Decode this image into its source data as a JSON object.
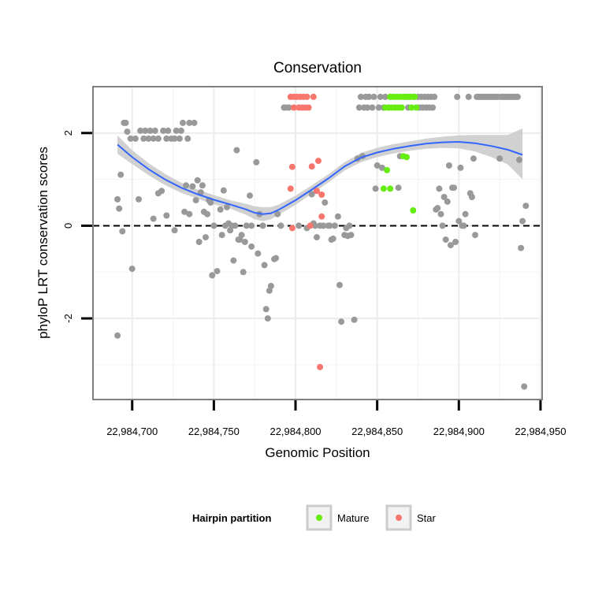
{
  "chart_data": {
    "type": "scatter",
    "title": "Conservation",
    "xlabel": "Genomic Position",
    "ylabel": "phyloP LRT conservation scores",
    "xlim": [
      22984676,
      22984951
    ],
    "ylim": [
      -3.75,
      3.0
    ],
    "x_ticks": [
      22984700,
      22984750,
      22984800,
      22984850,
      22984900,
      22984950
    ],
    "x_tick_labels": [
      "22,984,700",
      "22,984,750",
      "22,984,800",
      "22,984,850",
      "22,984,900",
      "22,984,950"
    ],
    "y_ticks": [
      -2,
      0,
      2
    ],
    "y_tick_labels": [
      "-2",
      "0",
      "2"
    ],
    "reference_line": {
      "y": 0,
      "style": "dashed"
    },
    "grid": true,
    "colors": {
      "none": "#999999",
      "Mature": "#66ee11",
      "Star": "#f8766d",
      "smooth": "#3366ff",
      "ribbon": "#cccccc",
      "panel": "#ebebeb"
    },
    "legend": {
      "title": "Hairpin partition",
      "position": "bottom",
      "entries": [
        {
          "label": "Mature",
          "color": "#66ee11"
        },
        {
          "label": "Star",
          "color": "#f8766d"
        }
      ]
    },
    "smooth": {
      "x": [
        22984691,
        22984700,
        22984710,
        22984720,
        22984730,
        22984740,
        22984750,
        22984760,
        22984770,
        22984775,
        22984780,
        22984785,
        22984790,
        22984800,
        22984810,
        22984820,
        22984830,
        22984840,
        22984850,
        22984860,
        22984870,
        22984880,
        22984890,
        22984900,
        22984910,
        22984920,
        22984930,
        22984939
      ],
      "y": [
        1.75,
        1.48,
        1.22,
        1.0,
        0.82,
        0.68,
        0.56,
        0.46,
        0.35,
        0.28,
        0.25,
        0.27,
        0.35,
        0.55,
        0.78,
        1.02,
        1.28,
        1.47,
        1.58,
        1.66,
        1.72,
        1.77,
        1.8,
        1.81,
        1.78,
        1.72,
        1.64,
        1.53
      ],
      "ymin": [
        1.55,
        1.33,
        1.09,
        0.88,
        0.71,
        0.58,
        0.46,
        0.37,
        0.23,
        0.14,
        0.1,
        0.14,
        0.24,
        0.45,
        0.69,
        0.93,
        1.19,
        1.37,
        1.48,
        1.56,
        1.62,
        1.66,
        1.68,
        1.67,
        1.6,
        1.48,
        1.32,
        1.0
      ],
      "ymax": [
        1.95,
        1.63,
        1.35,
        1.12,
        0.93,
        0.78,
        0.66,
        0.55,
        0.47,
        0.42,
        0.4,
        0.4,
        0.46,
        0.65,
        0.87,
        1.11,
        1.37,
        1.57,
        1.68,
        1.76,
        1.82,
        1.88,
        1.92,
        1.95,
        1.96,
        1.96,
        1.96,
        2.1
      ]
    },
    "series": [
      {
        "name": "none",
        "points": [
          [
            22984691,
            -2.37
          ],
          [
            22984691,
            0.57
          ],
          [
            22984692,
            0.37
          ],
          [
            22984693,
            1.1
          ],
          [
            22984694,
            -0.12
          ],
          [
            22984695,
            2.22
          ],
          [
            22984696,
            2.22
          ],
          [
            22984697,
            2.03
          ],
          [
            22984699,
            1.88
          ],
          [
            22984700,
            -0.93
          ],
          [
            22984702,
            1.88
          ],
          [
            22984704,
            0.57
          ],
          [
            22984705,
            2.05
          ],
          [
            22984707,
            1.88
          ],
          [
            22984708,
            2.05
          ],
          [
            22984710,
            1.88
          ],
          [
            22984711,
            2.05
          ],
          [
            22984713,
            0.15
          ],
          [
            22984713,
            1.88
          ],
          [
            22984714,
            2.05
          ],
          [
            22984716,
            0.7
          ],
          [
            22984716,
            1.88
          ],
          [
            22984718,
            0.75
          ],
          [
            22984719,
            2.05
          ],
          [
            22984721,
            0.22
          ],
          [
            22984721,
            1.88
          ],
          [
            22984722,
            2.05
          ],
          [
            22984724,
            1.88
          ],
          [
            22984726,
            -0.1
          ],
          [
            22984726,
            1.88
          ],
          [
            22984727,
            2.05
          ],
          [
            22984729,
            1.88
          ],
          [
            22984730,
            2.05
          ],
          [
            22984731,
            2.22
          ],
          [
            22984732,
            0.3
          ],
          [
            22984733,
            0.87
          ],
          [
            22984734,
            1.88
          ],
          [
            22984735,
            2.22
          ],
          [
            22984735,
            0.25
          ],
          [
            22984737,
            0.85
          ],
          [
            22984738,
            2.22
          ],
          [
            22984739,
            0.55
          ],
          [
            22984740,
            0.98
          ],
          [
            22984741,
            -0.35
          ],
          [
            22984742,
            0.72
          ],
          [
            22984743,
            0.87
          ],
          [
            22984744,
            0.3
          ],
          [
            22984745,
            -0.25
          ],
          [
            22984746,
            0.25
          ],
          [
            22984747,
            0.55
          ],
          [
            22984748,
            0.5
          ],
          [
            22984749,
            -1.07
          ],
          [
            22984750,
            0.0
          ],
          [
            22984752,
            -0.98
          ],
          [
            22984754,
            0.35
          ],
          [
            22984755,
            -0.2
          ],
          [
            22984756,
            0.76
          ],
          [
            22984757,
            0.0
          ],
          [
            22984758,
            0.4
          ],
          [
            22984759,
            0.05
          ],
          [
            22984760,
            -0.1
          ],
          [
            22984761,
            0.0
          ],
          [
            22984762,
            -0.75
          ],
          [
            22984763,
            0.0
          ],
          [
            22984764,
            1.63
          ],
          [
            22984765,
            -0.3
          ],
          [
            22984766,
            -0.3
          ],
          [
            22984767,
            -0.2
          ],
          [
            22984768,
            -1.0
          ],
          [
            22984769,
            -0.35
          ],
          [
            22984770,
            0.0
          ],
          [
            22984772,
            0.65
          ],
          [
            22984773,
            0.0
          ],
          [
            22984773,
            -0.45
          ],
          [
            22984776,
            1.37
          ],
          [
            22984777,
            -0.6
          ],
          [
            22984778,
            0.25
          ],
          [
            22984780,
            0.0
          ],
          [
            22984781,
            -0.85
          ],
          [
            22984782,
            -1.8
          ],
          [
            22984783,
            -2.0
          ],
          [
            22984784,
            -1.4
          ],
          [
            22984785,
            -1.3
          ],
          [
            22984787,
            -0.72
          ],
          [
            22984788,
            -0.7
          ],
          [
            22984789,
            0.25
          ],
          [
            22984791,
            0.0
          ],
          [
            22984793,
            2.55
          ],
          [
            22984794,
            2.55
          ],
          [
            22984796,
            2.55
          ],
          [
            22984802,
            0.0
          ],
          [
            22984807,
            -0.05
          ],
          [
            22984810,
            0.68
          ],
          [
            22984811,
            0.05
          ],
          [
            22984812,
            0.0
          ],
          [
            22984813,
            -0.25
          ],
          [
            22984815,
            0.0
          ],
          [
            22984817,
            0.0
          ],
          [
            22984818,
            0.5
          ],
          [
            22984820,
            0.0
          ],
          [
            22984821,
            0.0
          ],
          [
            22984822,
            -0.3
          ],
          [
            22984823,
            -0.28
          ],
          [
            22984824,
            0.0
          ],
          [
            22984826,
            0.2
          ],
          [
            22984827,
            -1.28
          ],
          [
            22984828,
            -2.07
          ],
          [
            22984830,
            -0.2
          ],
          [
            22984831,
            -0.05
          ],
          [
            22984832,
            -0.22
          ],
          [
            22984833,
            0.0
          ],
          [
            22984834,
            -0.2
          ],
          [
            22984836,
            -2.03
          ],
          [
            22984838,
            1.45
          ],
          [
            22984839,
            2.55
          ],
          [
            22984840,
            2.78
          ],
          [
            22984841,
            1.5
          ],
          [
            22984842,
            2.55
          ],
          [
            22984843,
            2.78
          ],
          [
            22984844,
            2.55
          ],
          [
            22984845,
            2.78
          ],
          [
            22984847,
            2.55
          ],
          [
            22984848,
            2.78
          ],
          [
            22984849,
            0.8
          ],
          [
            22984850,
            1.3
          ],
          [
            22984851,
            2.55
          ],
          [
            22984852,
            2.78
          ],
          [
            22984853,
            1.25
          ],
          [
            22984854,
            2.55
          ],
          [
            22984855,
            2.78
          ],
          [
            22984863,
            0.82
          ],
          [
            22984864,
            1.5
          ],
          [
            22984868,
            2.78
          ],
          [
            22984869,
            2.55
          ],
          [
            22984874,
            2.55
          ],
          [
            22984875,
            2.78
          ],
          [
            22984876,
            2.55
          ],
          [
            22984877,
            2.78
          ],
          [
            22984878,
            2.55
          ],
          [
            22984879,
            2.78
          ],
          [
            22984880,
            2.55
          ],
          [
            22984881,
            2.78
          ],
          [
            22984882,
            2.55
          ],
          [
            22984883,
            2.78
          ],
          [
            22984884,
            2.55
          ],
          [
            22984885,
            2.78
          ],
          [
            22984886,
            0.35
          ],
          [
            22984887,
            0.38
          ],
          [
            22984888,
            0.8
          ],
          [
            22984889,
            0.25
          ],
          [
            22984890,
            0.0
          ],
          [
            22984891,
            0.62
          ],
          [
            22984892,
            -0.3
          ],
          [
            22984893,
            0.52
          ],
          [
            22984894,
            1.3
          ],
          [
            22984895,
            -0.42
          ],
          [
            22984896,
            0.82
          ],
          [
            22984897,
            0.82
          ],
          [
            22984898,
            -0.35
          ],
          [
            22984899,
            2.78
          ],
          [
            22984900,
            0.1
          ],
          [
            22984901,
            1.25
          ],
          [
            22984902,
            0.0
          ],
          [
            22984903,
            0.0
          ],
          [
            22984904,
            0.25
          ],
          [
            22984906,
            2.78
          ],
          [
            22984907,
            0.7
          ],
          [
            22984908,
            0.62
          ],
          [
            22984909,
            1.45
          ],
          [
            22984910,
            -0.2
          ],
          [
            22984911,
            2.78
          ],
          [
            22984912,
            2.78
          ],
          [
            22984913,
            2.78
          ],
          [
            22984914,
            2.78
          ],
          [
            22984915,
            2.78
          ],
          [
            22984916,
            2.78
          ],
          [
            22984917,
            2.78
          ],
          [
            22984918,
            2.78
          ],
          [
            22984919,
            2.78
          ],
          [
            22984920,
            2.78
          ],
          [
            22984921,
            2.78
          ],
          [
            22984922,
            2.78
          ],
          [
            22984923,
            2.78
          ],
          [
            22984924,
            2.78
          ],
          [
            22984925,
            1.45
          ],
          [
            22984926,
            2.78
          ],
          [
            22984927,
            2.78
          ],
          [
            22984928,
            2.78
          ],
          [
            22984929,
            2.78
          ],
          [
            22984930,
            2.78
          ],
          [
            22984931,
            2.78
          ],
          [
            22984932,
            2.78
          ],
          [
            22984933,
            2.78
          ],
          [
            22984934,
            2.78
          ],
          [
            22984935,
            2.78
          ],
          [
            22984936,
            2.78
          ],
          [
            22984937,
            1.42
          ],
          [
            22984938,
            -0.48
          ],
          [
            22984939,
            0.1
          ],
          [
            22984940,
            -3.47
          ],
          [
            22984941,
            0.43
          ]
        ]
      },
      {
        "name": "Mature",
        "points": [
          [
            22984854,
            0.8
          ],
          [
            22984856,
            1.2
          ],
          [
            22984858,
            0.8
          ],
          [
            22984855,
            2.55
          ],
          [
            22984857,
            2.55
          ],
          [
            22984858,
            2.78
          ],
          [
            22984859,
            2.55
          ],
          [
            22984860,
            2.78
          ],
          [
            22984861,
            2.55
          ],
          [
            22984862,
            2.78
          ],
          [
            22984863,
            2.55
          ],
          [
            22984864,
            2.78
          ],
          [
            22984865,
            2.55
          ],
          [
            22984866,
            2.78
          ],
          [
            22984867,
            2.78
          ],
          [
            22984868,
            1.48
          ],
          [
            22984869,
            2.78
          ],
          [
            22984870,
            2.78
          ],
          [
            22984871,
            2.55
          ],
          [
            22984872,
            2.78
          ],
          [
            22984873,
            2.78
          ],
          [
            22984866,
            1.5
          ],
          [
            22984874,
            2.55
          ],
          [
            22984872,
            0.33
          ]
        ]
      },
      {
        "name": "Star",
        "points": [
          [
            22984797,
            2.78
          ],
          [
            22984799,
            2.78
          ],
          [
            22984801,
            2.78
          ],
          [
            22984803,
            2.78
          ],
          [
            22984805,
            2.78
          ],
          [
            22984807,
            2.78
          ],
          [
            22984799,
            2.55
          ],
          [
            22984802,
            2.55
          ],
          [
            22984804,
            2.55
          ],
          [
            22984806,
            2.55
          ],
          [
            22984808,
            2.55
          ],
          [
            22984811,
            2.78
          ],
          [
            22984798,
            1.27
          ],
          [
            22984810,
            1.28
          ],
          [
            22984814,
            1.4
          ],
          [
            22984797,
            0.8
          ],
          [
            22984813,
            0.75
          ],
          [
            22984816,
            0.67
          ],
          [
            22984816,
            0.2
          ],
          [
            22984809,
            0.0
          ],
          [
            22984798,
            -0.05
          ],
          [
            22984815,
            -3.05
          ]
        ]
      }
    ]
  }
}
